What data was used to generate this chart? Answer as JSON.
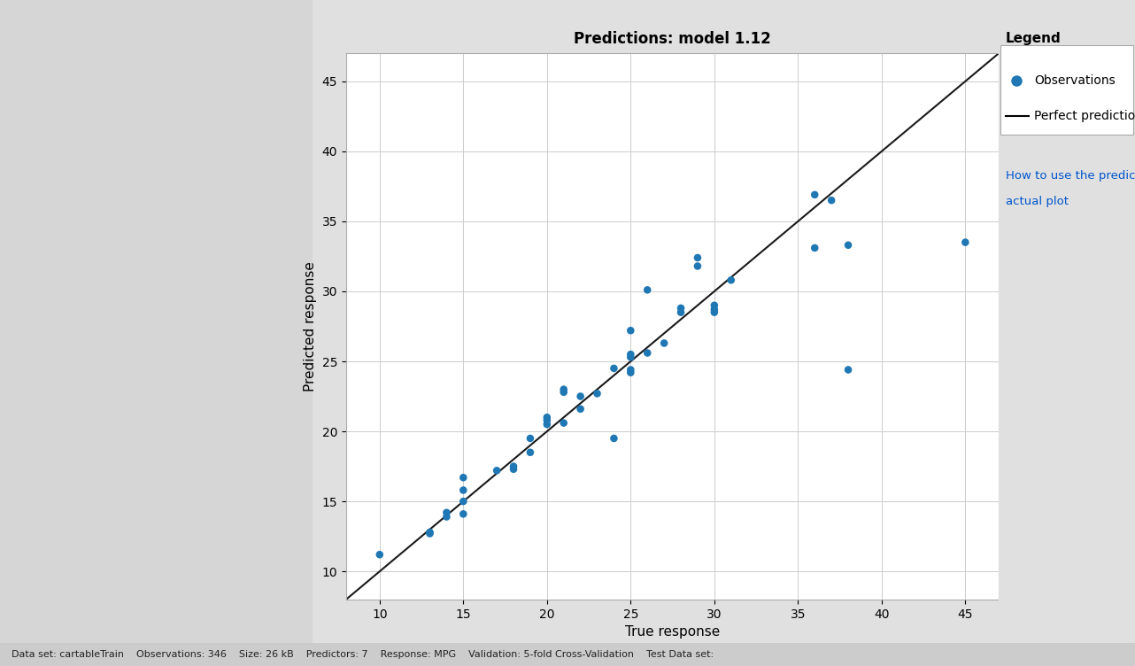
{
  "title": "Predictions: model 1.12",
  "xlabel": "True response",
  "ylabel": "Predicted response",
  "xlim": [
    8,
    47
  ],
  "ylim": [
    8,
    47
  ],
  "xticks": [
    10,
    15,
    20,
    25,
    30,
    35,
    40,
    45
  ],
  "yticks": [
    10,
    15,
    20,
    25,
    30,
    35,
    40,
    45
  ],
  "scatter_color": "#1f77b4",
  "scatter_size": 38,
  "line_color": "#1a1a1a",
  "background_color": "#e0e0e0",
  "plot_bg_color": "#ffffff",
  "grid_color": "#cccccc",
  "sidebar_color": "#d6d6d6",
  "legend_title": "Legend",
  "legend_obs": "Observations",
  "legend_pred": "Perfect prediction",
  "link_line1": "How to use the predicted vs.",
  "link_line2": "actual plot",
  "title_fontsize": 12,
  "axis_label_fontsize": 11,
  "tick_fontsize": 10,
  "true_response": [
    10,
    13,
    13,
    14,
    14,
    15,
    15,
    15,
    15,
    17,
    18,
    18,
    19,
    19,
    20,
    20,
    20,
    21,
    21,
    21,
    22,
    22,
    23,
    24,
    24,
    25,
    25,
    25,
    25,
    25,
    26,
    26,
    27,
    28,
    28,
    29,
    29,
    30,
    30,
    30,
    31,
    36,
    36,
    37,
    38,
    38,
    45
  ],
  "predicted_response": [
    11.2,
    12.8,
    12.7,
    14.2,
    13.9,
    16.7,
    15.8,
    15.0,
    14.1,
    17.2,
    17.5,
    17.3,
    18.5,
    19.5,
    20.5,
    20.8,
    21.0,
    22.8,
    23.0,
    20.6,
    22.5,
    21.6,
    22.7,
    24.5,
    19.5,
    25.3,
    25.5,
    24.4,
    24.2,
    27.2,
    30.1,
    25.6,
    26.3,
    28.8,
    28.5,
    32.4,
    31.8,
    28.7,
    28.5,
    29.0,
    30.8,
    33.1,
    36.9,
    36.5,
    33.3,
    24.4,
    33.5
  ]
}
